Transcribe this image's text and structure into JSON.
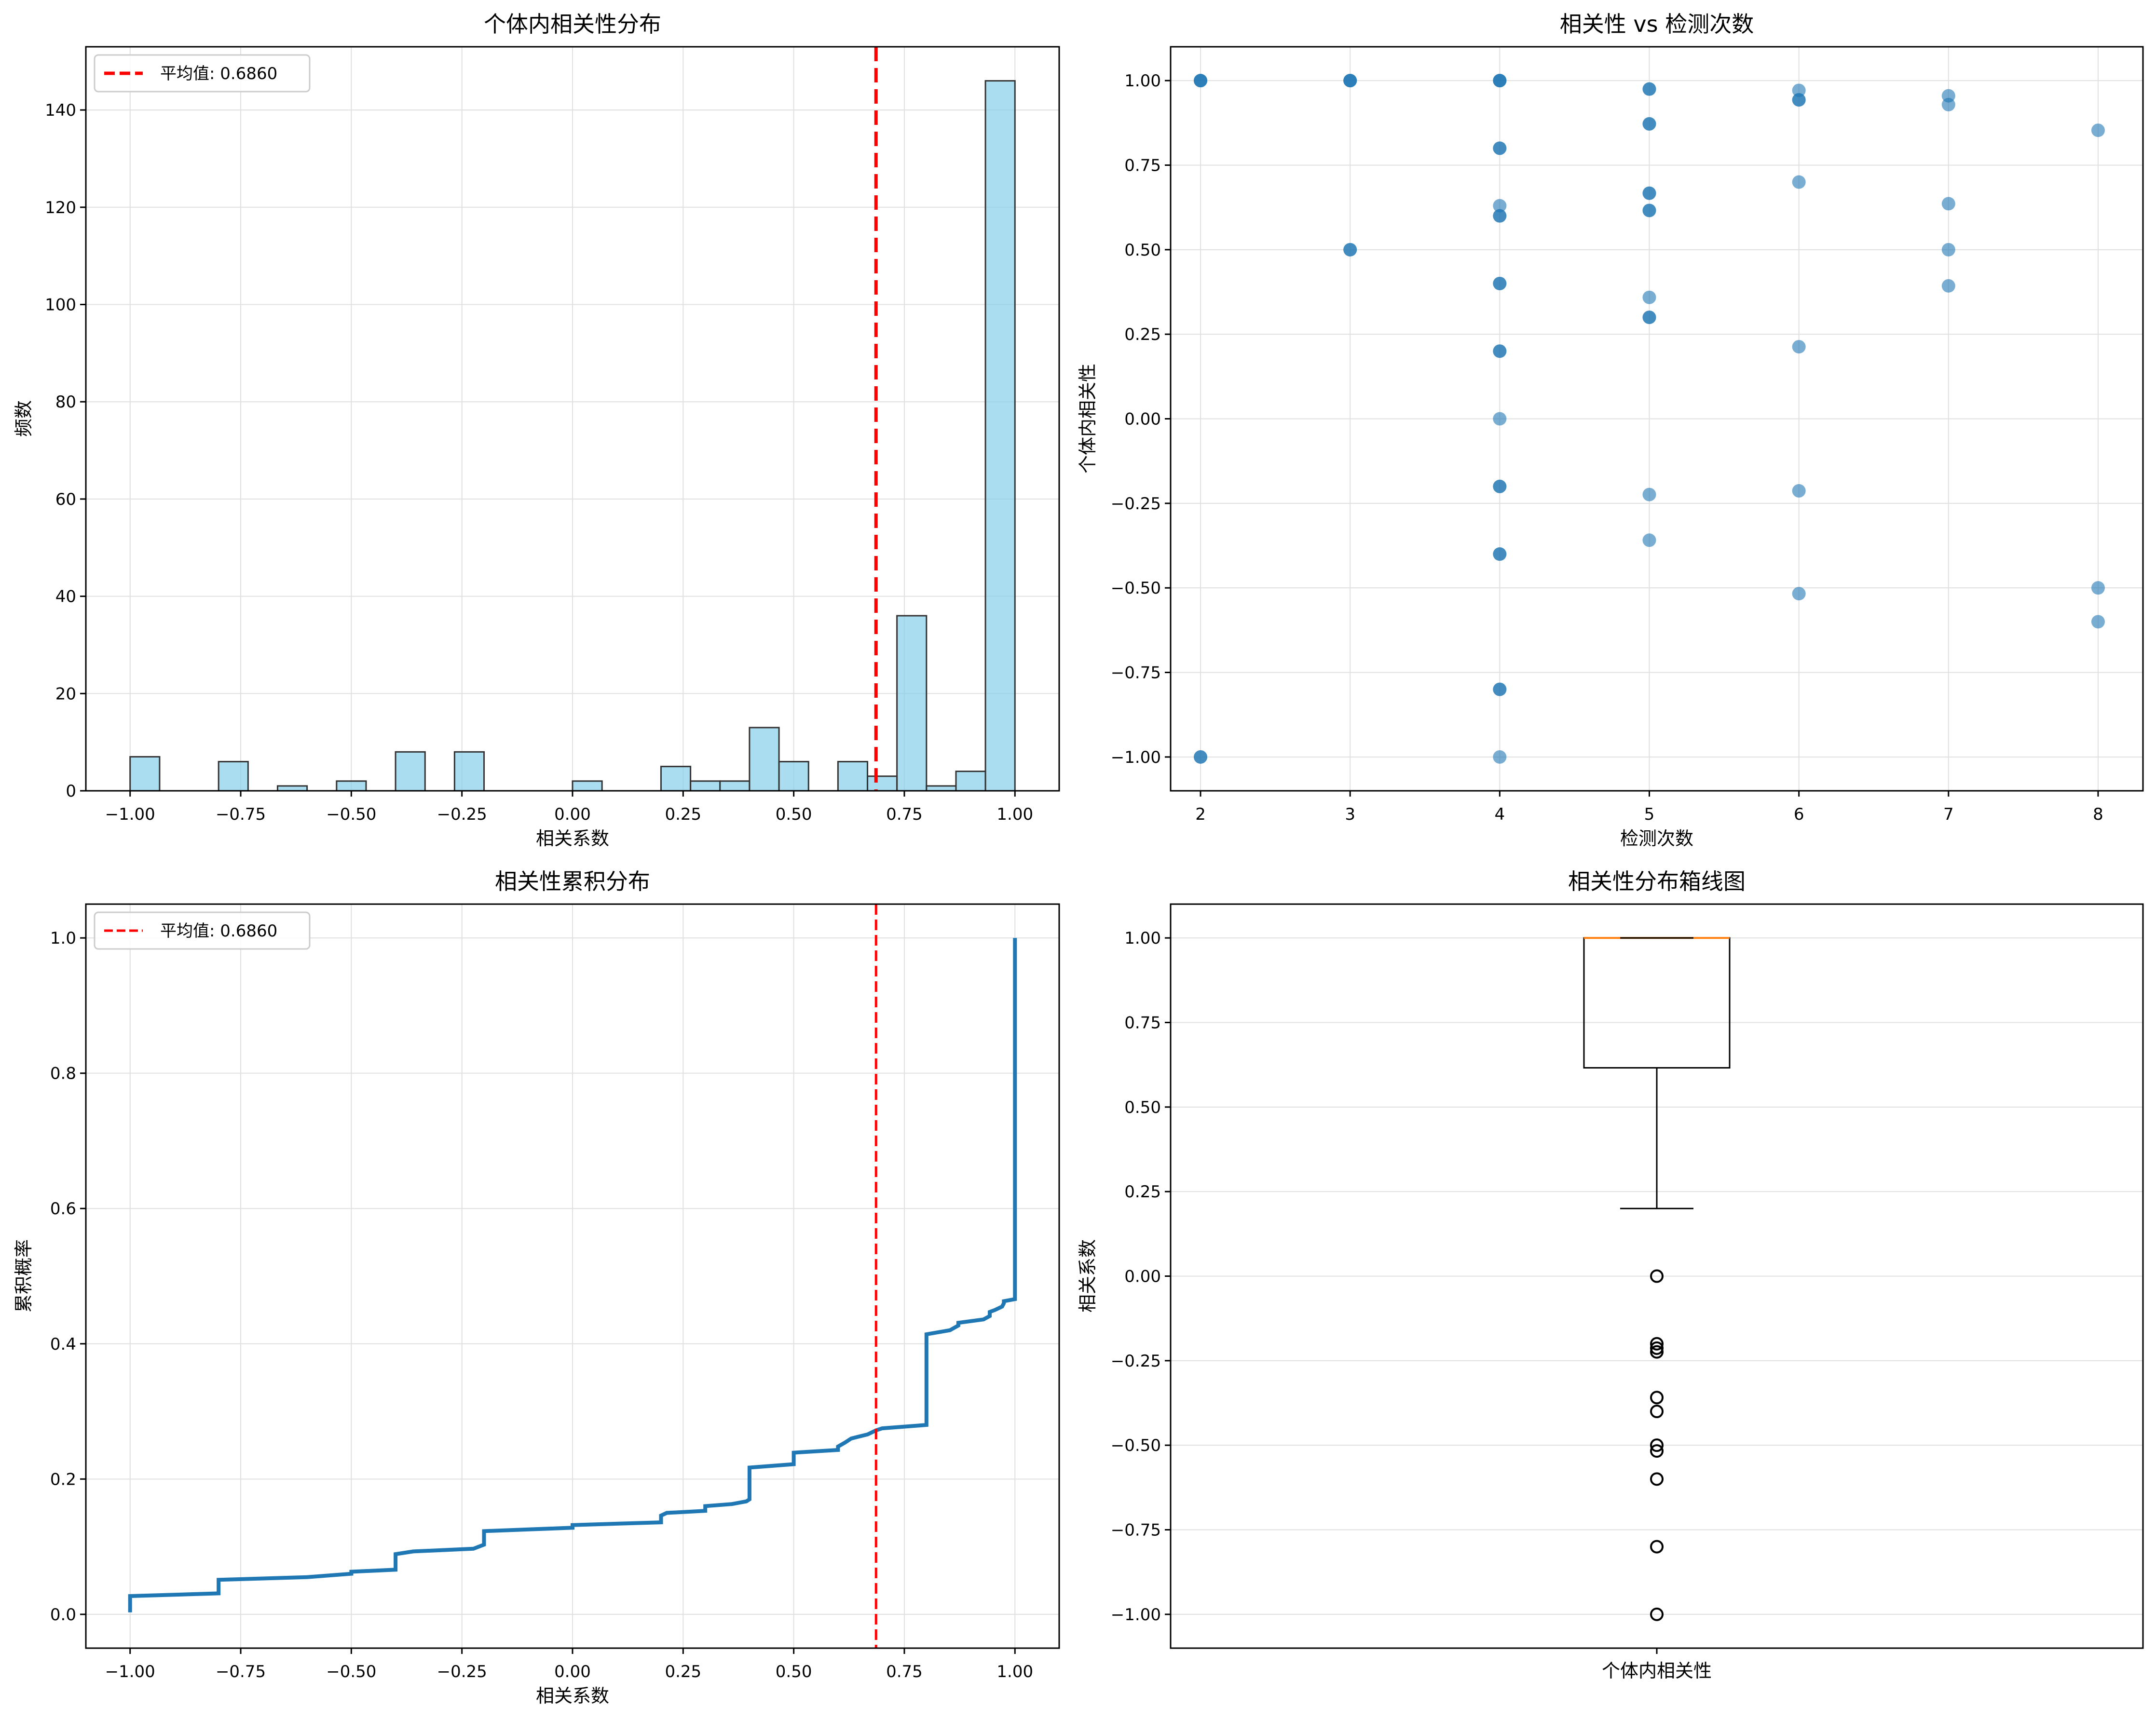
{
  "colors": {
    "hist_fill": "#87ceeb",
    "edge": "#333333",
    "mean_line": "#ff0000",
    "scatter": "#1f77b4",
    "cdf_line": "#1f77b4",
    "median": "#ff7f0e",
    "grid": "#e0e0e0"
  },
  "chart_data": [
    {
      "id": "hist",
      "type": "bar",
      "title": "个体内相关性分布",
      "xlabel": "相关系数",
      "ylabel": "频数",
      "xlim": [
        -1.1,
        1.1
      ],
      "ylim": [
        0,
        153
      ],
      "xticks": [
        -1.0,
        -0.75,
        -0.5,
        -0.25,
        0.0,
        0.25,
        0.5,
        0.75,
        1.0
      ],
      "xtick_labels": [
        "−1.00",
        "−0.75",
        "−0.50",
        "−0.25",
        "0.00",
        "0.25",
        "0.50",
        "0.75",
        "1.00"
      ],
      "yticks": [
        0,
        20,
        40,
        60,
        80,
        100,
        120,
        140
      ],
      "ytick_labels": [
        "0",
        "20",
        "40",
        "60",
        "80",
        "100",
        "120",
        "140"
      ],
      "grid": true,
      "bin_width": 0.0667,
      "bins": [
        {
          "x": -1.0,
          "count": 7
        },
        {
          "x": -0.8,
          "count": 6
        },
        {
          "x": -0.6667,
          "count": 1
        },
        {
          "x": -0.5333,
          "count": 2
        },
        {
          "x": -0.4,
          "count": 8
        },
        {
          "x": -0.2667,
          "count": 8
        },
        {
          "x": 0.0,
          "count": 2
        },
        {
          "x": 0.2,
          "count": 5
        },
        {
          "x": 0.2667,
          "count": 2
        },
        {
          "x": 0.3333,
          "count": 2
        },
        {
          "x": 0.4,
          "count": 13
        },
        {
          "x": 0.4667,
          "count": 6
        },
        {
          "x": 0.6,
          "count": 6
        },
        {
          "x": 0.6667,
          "count": 3
        },
        {
          "x": 0.7333,
          "count": 36
        },
        {
          "x": 0.8,
          "count": 1
        },
        {
          "x": 0.8667,
          "count": 4
        },
        {
          "x": 0.9333,
          "count": 146
        }
      ],
      "mean": 0.686,
      "legend": {
        "label": "平均值: 0.6860",
        "position": "top-left"
      }
    },
    {
      "id": "scatter",
      "type": "scatter",
      "title": "相关性 vs 检测次数",
      "xlabel": "检测次数",
      "ylabel": "个体内相关性",
      "xlim": [
        1.8,
        8.3
      ],
      "ylim": [
        -1.1,
        1.1
      ],
      "xticks": [
        2,
        3,
        4,
        5,
        6,
        7,
        8
      ],
      "xtick_labels": [
        "2",
        "3",
        "4",
        "5",
        "6",
        "7",
        "8"
      ],
      "yticks": [
        -1.0,
        -0.75,
        -0.5,
        -0.25,
        0.0,
        0.25,
        0.5,
        0.75,
        1.0
      ],
      "ytick_labels": [
        "−1.00",
        "−0.75",
        "−0.50",
        "−0.25",
        "0.00",
        "0.25",
        "0.50",
        "0.75",
        "1.00"
      ],
      "grid": true,
      "points": [
        [
          2,
          1.0
        ],
        [
          2,
          1.0
        ],
        [
          2,
          1.0
        ],
        [
          2,
          -1.0
        ],
        [
          2,
          -1.0
        ],
        [
          3,
          1.0
        ],
        [
          3,
          1.0
        ],
        [
          3,
          1.0
        ],
        [
          3,
          0.5
        ],
        [
          3,
          0.5
        ],
        [
          4,
          1.0
        ],
        [
          4,
          1.0
        ],
        [
          4,
          1.0
        ],
        [
          4,
          0.8
        ],
        [
          4,
          0.8
        ],
        [
          4,
          0.63
        ],
        [
          4,
          0.6
        ],
        [
          4,
          0.6
        ],
        [
          4,
          0.4
        ],
        [
          4,
          0.4
        ],
        [
          4,
          0.2
        ],
        [
          4,
          0.2
        ],
        [
          4,
          0.0
        ],
        [
          4,
          -0.2
        ],
        [
          4,
          -0.2
        ],
        [
          4,
          -0.4
        ],
        [
          4,
          -0.4
        ],
        [
          4,
          -0.8
        ],
        [
          4,
          -0.8
        ],
        [
          4,
          -1.0
        ],
        [
          5,
          0.975
        ],
        [
          5,
          0.975
        ],
        [
          5,
          0.872
        ],
        [
          5,
          0.872
        ],
        [
          5,
          0.667
        ],
        [
          5,
          0.667
        ],
        [
          5,
          0.616
        ],
        [
          5,
          0.616
        ],
        [
          5,
          0.359
        ],
        [
          5,
          0.3
        ],
        [
          5,
          0.3
        ],
        [
          5,
          -0.224
        ],
        [
          5,
          -0.359
        ],
        [
          6,
          0.971
        ],
        [
          6,
          0.943
        ],
        [
          6,
          0.943
        ],
        [
          6,
          0.7
        ],
        [
          6,
          0.213
        ],
        [
          6,
          -0.213
        ],
        [
          6,
          -0.517
        ],
        [
          7,
          0.955
        ],
        [
          7,
          0.929
        ],
        [
          7,
          0.636
        ],
        [
          7,
          0.5
        ],
        [
          7,
          0.393
        ],
        [
          8,
          0.853
        ],
        [
          8,
          -0.5
        ],
        [
          8,
          -0.6
        ]
      ]
    },
    {
      "id": "cdf",
      "type": "line",
      "title": "相关性累积分布",
      "xlabel": "相关系数",
      "ylabel": "累积概率",
      "xlim": [
        -1.1,
        1.1
      ],
      "ylim": [
        -0.05,
        1.05
      ],
      "xticks": [
        -1.0,
        -0.75,
        -0.5,
        -0.25,
        0.0,
        0.25,
        0.5,
        0.75,
        1.0
      ],
      "xtick_labels": [
        "−1.00",
        "−0.75",
        "−0.50",
        "−0.25",
        "0.00",
        "0.25",
        "0.50",
        "0.75",
        "1.00"
      ],
      "yticks": [
        0.0,
        0.2,
        0.4,
        0.6,
        0.8,
        1.0
      ],
      "ytick_labels": [
        "0.0",
        "0.2",
        "0.4",
        "0.6",
        "0.8",
        "1.0"
      ],
      "grid": true,
      "points": [
        [
          -1.0,
          0.003
        ],
        [
          -1.0,
          0.027
        ],
        [
          -0.8,
          0.031
        ],
        [
          -0.8,
          0.051
        ],
        [
          -0.6,
          0.055
        ],
        [
          -0.5,
          0.06
        ],
        [
          -0.5,
          0.063
        ],
        [
          -0.4,
          0.066
        ],
        [
          -0.4,
          0.089
        ],
        [
          -0.36,
          0.093
        ],
        [
          -0.224,
          0.097
        ],
        [
          -0.2,
          0.103
        ],
        [
          -0.2,
          0.123
        ],
        [
          0.0,
          0.128
        ],
        [
          0.0,
          0.132
        ],
        [
          0.2,
          0.136
        ],
        [
          0.2,
          0.146
        ],
        [
          0.213,
          0.15
        ],
        [
          0.3,
          0.153
        ],
        [
          0.3,
          0.16
        ],
        [
          0.36,
          0.163
        ],
        [
          0.393,
          0.167
        ],
        [
          0.4,
          0.17
        ],
        [
          0.4,
          0.217
        ],
        [
          0.5,
          0.222
        ],
        [
          0.5,
          0.239
        ],
        [
          0.6,
          0.243
        ],
        [
          0.6,
          0.248
        ],
        [
          0.616,
          0.254
        ],
        [
          0.63,
          0.26
        ],
        [
          0.667,
          0.266
        ],
        [
          0.686,
          0.272
        ],
        [
          0.7,
          0.275
        ],
        [
          0.8,
          0.28
        ],
        [
          0.8,
          0.414
        ],
        [
          0.853,
          0.42
        ],
        [
          0.872,
          0.427
        ],
        [
          0.872,
          0.431
        ],
        [
          0.929,
          0.436
        ],
        [
          0.943,
          0.441
        ],
        [
          0.943,
          0.447
        ],
        [
          0.955,
          0.45
        ],
        [
          0.971,
          0.455
        ],
        [
          0.975,
          0.46
        ],
        [
          0.975,
          0.463
        ],
        [
          1.0,
          0.466
        ],
        [
          1.0,
          1.0
        ]
      ],
      "mean": 0.686,
      "legend": {
        "label": "平均值: 0.6860",
        "position": "top-left"
      }
    },
    {
      "id": "box",
      "type": "box",
      "title": "相关性分布箱线图",
      "xlabel": "",
      "ylabel": "相关系数",
      "category": "个体内相关性",
      "ylim": [
        -1.1,
        1.1
      ],
      "yticks": [
        -1.0,
        -0.75,
        -0.5,
        -0.25,
        0.0,
        0.25,
        0.5,
        0.75,
        1.0
      ],
      "ytick_labels": [
        "−1.00",
        "−0.75",
        "−0.50",
        "−0.25",
        "0.00",
        "0.25",
        "0.50",
        "0.75",
        "1.00"
      ],
      "grid": true,
      "q1": 0.616,
      "median": 1.0,
      "q3": 1.0,
      "whisker_low": 0.2,
      "whisker_high": 1.0,
      "outliers": [
        0.0,
        -0.2,
        -0.213,
        -0.224,
        -0.359,
        -0.4,
        -0.5,
        -0.517,
        -0.6,
        -0.8,
        -1.0
      ]
    }
  ]
}
